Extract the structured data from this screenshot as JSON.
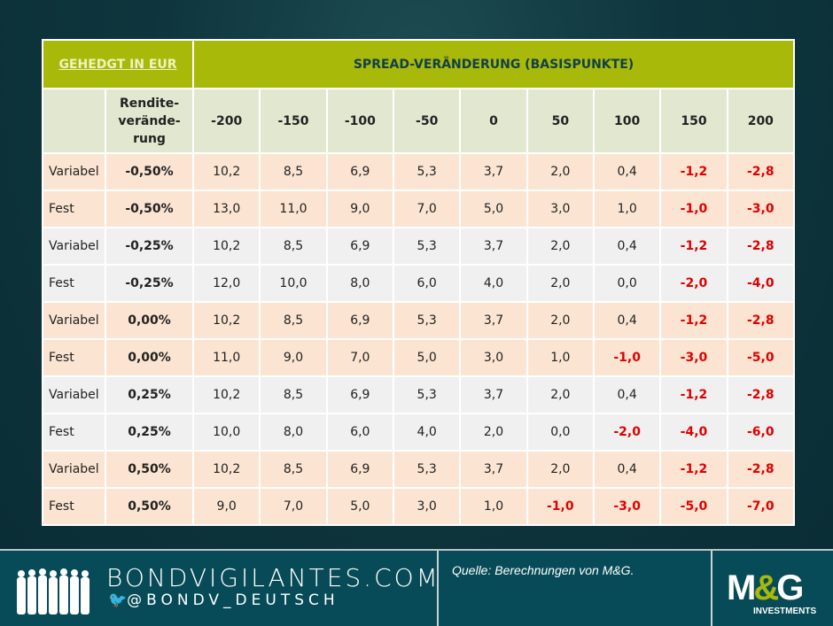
{
  "header": {
    "left": "GEHEDGT IN EUR",
    "title": "SPREAD-VERÄNDERUNG (BASISPUNKTE)"
  },
  "subheader": {
    "yield_line1": "Rendite-",
    "yield_line2": "verände-",
    "yield_line3": "rung",
    "spreads": [
      "-200",
      "-150",
      "-100",
      "-50",
      "0",
      "50",
      "100",
      "150",
      "200"
    ]
  },
  "rows": [
    {
      "type": "Variabel",
      "yield": "-0,50%",
      "values": [
        "10,2",
        "8,5",
        "6,9",
        "5,3",
        "3,7",
        "2,0",
        "0,4",
        "-1,2",
        "-2,8"
      ]
    },
    {
      "type": "Fest",
      "yield": "-0,50%",
      "values": [
        "13,0",
        "11,0",
        "9,0",
        "7,0",
        "5,0",
        "3,0",
        "1,0",
        "-1,0",
        "-3,0"
      ]
    },
    {
      "type": "Variabel",
      "yield": "-0,25%",
      "values": [
        "10,2",
        "8,5",
        "6,9",
        "5,3",
        "3,7",
        "2,0",
        "0,4",
        "-1,2",
        "-2,8"
      ]
    },
    {
      "type": "Fest",
      "yield": "-0,25%",
      "values": [
        "12,0",
        "10,0",
        "8,0",
        "6,0",
        "4,0",
        "2,0",
        "0,0",
        "-2,0",
        "-4,0"
      ]
    },
    {
      "type": "Variabel",
      "yield": "0,00%",
      "values": [
        "10,2",
        "8,5",
        "6,9",
        "5,3",
        "3,7",
        "2,0",
        "0,4",
        "-1,2",
        "-2,8"
      ]
    },
    {
      "type": "Fest",
      "yield": "0,00%",
      "values": [
        "11,0",
        "9,0",
        "7,0",
        "5,0",
        "3,0",
        "1,0",
        "-1,0",
        "-3,0",
        "-5,0"
      ]
    },
    {
      "type": "Variabel",
      "yield": "0,25%",
      "values": [
        "10,2",
        "8,5",
        "6,9",
        "5,3",
        "3,7",
        "2,0",
        "0,4",
        "-1,2",
        "-2,8"
      ]
    },
    {
      "type": "Fest",
      "yield": "0,25%",
      "values": [
        "10,0",
        "8,0",
        "6,0",
        "4,0",
        "2,0",
        "0,0",
        "-2,0",
        "-4,0",
        "-6,0"
      ]
    },
    {
      "type": "Variabel",
      "yield": "0,50%",
      "values": [
        "10,2",
        "8,5",
        "6,9",
        "5,3",
        "3,7",
        "2,0",
        "0,4",
        "-1,2",
        "-2,8"
      ]
    },
    {
      "type": "Fest",
      "yield": "0,50%",
      "values": [
        "9,0",
        "7,0",
        "5,0",
        "3,0",
        "1,0",
        "-1,0",
        "-3,0",
        "-5,0",
        "-7,0"
      ]
    }
  ],
  "footer": {
    "site": "BONDVIGILANTES.COM",
    "twitter": "@BONDV_DEUTSCH",
    "source": "Quelle: Berechnungen von M&G.",
    "logo": "M&G",
    "logo_sub": "INVESTMENTS"
  },
  "colors": {
    "negative": "#e00000",
    "header": "#a8b90a"
  }
}
